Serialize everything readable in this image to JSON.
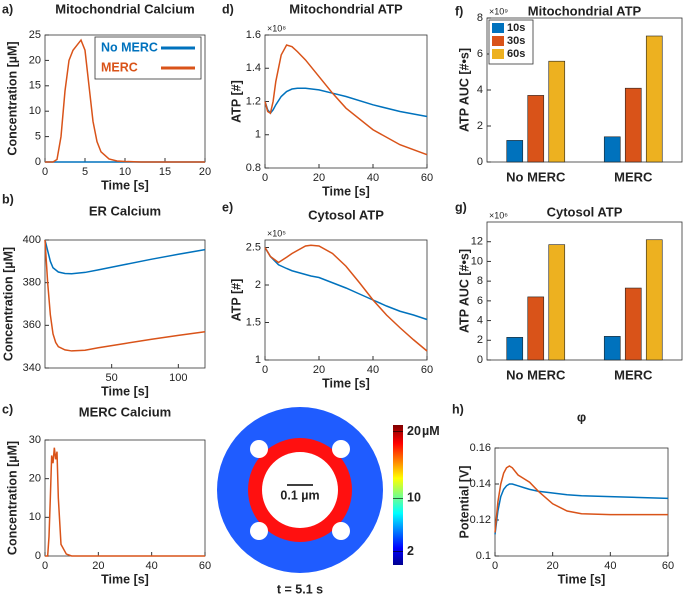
{
  "chart_data": [
    {
      "type": "line",
      "panel": "a)",
      "title": "Mitochondrial Calcium",
      "xlabel": "Time [s]",
      "ylabel": "Concentration [µM]",
      "x": [
        0,
        1,
        1.5,
        2,
        2.5,
        3,
        3.5,
        4,
        4.5,
        5,
        5.5,
        6,
        6.5,
        7,
        8,
        9,
        10,
        12,
        15,
        20
      ],
      "series": [
        {
          "name": "No MERC",
          "color": "#0072bd",
          "values": [
            0,
            0,
            0,
            0,
            0,
            0,
            0,
            0,
            0,
            0,
            0,
            0,
            0,
            0,
            0,
            0,
            0,
            0,
            0,
            0
          ]
        },
        {
          "name": "MERC",
          "color": "#d95319",
          "values": [
            0,
            0,
            0.5,
            5,
            14,
            20,
            22,
            23,
            24,
            22,
            15,
            8,
            4,
            2,
            0.6,
            0.2,
            0.1,
            0,
            0,
            0
          ]
        }
      ],
      "xlim": [
        0,
        20
      ],
      "xticks": [
        0,
        5,
        10,
        15,
        20
      ],
      "ylim": [
        0,
        25
      ],
      "yticks": [
        0,
        5,
        10,
        15,
        20,
        25
      ],
      "legend": "upper right"
    },
    {
      "type": "line",
      "panel": "b)",
      "title": "ER Calcium",
      "xlabel": "Time [s]",
      "ylabel": "Concentration [µM]",
      "x": [
        0,
        2,
        4,
        6,
        8,
        10,
        15,
        20,
        30,
        40,
        60,
        80,
        100,
        120
      ],
      "series": [
        {
          "color": "#0072bd",
          "values": [
            400,
            395,
            390,
            387,
            386,
            385,
            384.3,
            384.2,
            384.8,
            386,
            388.5,
            391,
            393.3,
            395.5
          ]
        },
        {
          "color": "#d95319",
          "values": [
            400,
            380,
            365,
            356,
            352,
            350,
            348.5,
            348,
            348.3,
            349.5,
            351.5,
            353.5,
            355.3,
            357
          ]
        }
      ],
      "xlim": [
        0,
        120
      ],
      "xticks": [
        50,
        100
      ],
      "ylim": [
        340,
        400
      ],
      "yticks": [
        340,
        360,
        380,
        400
      ]
    },
    {
      "type": "line",
      "panel": "c)",
      "title": "MERC Calcium",
      "xlabel": "Time [s]",
      "ylabel": "Concentration [µM]",
      "x": [
        0,
        1,
        1.5,
        2,
        2.5,
        3,
        3.5,
        4,
        4.5,
        5,
        6,
        8,
        10,
        20,
        40,
        60
      ],
      "series": [
        {
          "color": "#d95319",
          "values": [
            0,
            0,
            5,
            15,
            26,
            24,
            28,
            25,
            27,
            15,
            3,
            0.5,
            0,
            0,
            0,
            0
          ]
        }
      ],
      "xlim": [
        0,
        60
      ],
      "xticks": [
        0,
        20,
        40,
        60
      ],
      "ylim": [
        0,
        30
      ],
      "yticks": [
        0,
        10,
        20,
        30
      ]
    },
    {
      "type": "line",
      "panel": "d)",
      "title": "Mitochondrial ATP",
      "xlabel": "Time [s]",
      "ylabel": "ATP [#]",
      "exponent": "×10⁸",
      "x": [
        0,
        1,
        2,
        3,
        4,
        6,
        8,
        10,
        12,
        15,
        20,
        25,
        30,
        40,
        50,
        60
      ],
      "series": [
        {
          "color": "#0072bd",
          "values": [
            1.2,
            1.15,
            1.13,
            1.15,
            1.18,
            1.23,
            1.26,
            1.275,
            1.28,
            1.28,
            1.27,
            1.25,
            1.23,
            1.18,
            1.14,
            1.11
          ]
        },
        {
          "color": "#d95319",
          "values": [
            1.2,
            1.14,
            1.13,
            1.2,
            1.32,
            1.48,
            1.54,
            1.53,
            1.5,
            1.45,
            1.35,
            1.25,
            1.16,
            1.03,
            0.94,
            0.88
          ]
        }
      ],
      "xlim": [
        0,
        60
      ],
      "xticks": [
        0,
        20,
        40,
        60
      ],
      "ylim": [
        0.8,
        1.6
      ],
      "yticks": [
        0.8,
        1,
        1.2,
        1.4,
        1.6
      ]
    },
    {
      "type": "line",
      "panel": "e)",
      "title": "Cytosol ATP",
      "xlabel": "Time [s]",
      "ylabel": "ATP [#]",
      "exponent": "×10⁵",
      "x": [
        0,
        2,
        5,
        8,
        10,
        15,
        17,
        20,
        25,
        30,
        35,
        40,
        45,
        50,
        55,
        60
      ],
      "series": [
        {
          "color": "#0072bd",
          "values": [
            2.5,
            2.38,
            2.27,
            2.22,
            2.19,
            2.14,
            2.12,
            2.1,
            2.03,
            1.96,
            1.88,
            1.8,
            1.72,
            1.65,
            1.6,
            1.54
          ]
        },
        {
          "color": "#d95319",
          "values": [
            2.5,
            2.38,
            2.3,
            2.37,
            2.42,
            2.52,
            2.53,
            2.52,
            2.42,
            2.25,
            2.03,
            1.8,
            1.6,
            1.43,
            1.27,
            1.12
          ]
        }
      ],
      "xlim": [
        0,
        60
      ],
      "xticks": [
        0,
        20,
        40,
        60
      ],
      "ylim": [
        1,
        2.6
      ],
      "yticks": [
        1,
        1.5,
        2,
        2.5
      ]
    },
    {
      "type": "bar",
      "panel": "f)",
      "title": "Mitochondrial ATP",
      "ylabel": "ATP AUC [#•s]",
      "exponent": "×10⁹",
      "categories": [
        "No MERC",
        "MERC"
      ],
      "series": [
        {
          "name": "10s",
          "color": "#0072bd",
          "values": [
            1.2,
            1.4
          ]
        },
        {
          "name": "30s",
          "color": "#d95319",
          "values": [
            3.7,
            4.1
          ]
        },
        {
          "name": "60s",
          "color": "#edb120",
          "values": [
            5.6,
            7.0
          ]
        }
      ],
      "ylim": [
        0,
        8
      ],
      "yticks": [
        0,
        2,
        4,
        6,
        8
      ],
      "legend": "upper left"
    },
    {
      "type": "bar",
      "panel": "g)",
      "title": "Cytosol ATP",
      "ylabel": "ATP AUC [#•s]",
      "exponent": "×10⁶",
      "categories": [
        "No MERC",
        "MERC"
      ],
      "series": [
        {
          "color": "#0072bd",
          "values": [
            2.3,
            2.4
          ]
        },
        {
          "color": "#d95319",
          "values": [
            6.4,
            7.3
          ]
        },
        {
          "color": "#edb120",
          "values": [
            11.7,
            12.2
          ]
        }
      ],
      "ylim": [
        0,
        14
      ],
      "yticks": [
        0,
        2,
        4,
        6,
        8,
        10,
        12
      ]
    },
    {
      "type": "line",
      "panel": "h)",
      "title": "φ",
      "xlabel": "Time [s]",
      "ylabel": "Potential [V]",
      "x": [
        0,
        1,
        2,
        3,
        4,
        5,
        6,
        8,
        10,
        12,
        15,
        20,
        25,
        30,
        40,
        50,
        60
      ],
      "series": [
        {
          "color": "#0072bd",
          "values": [
            0.112,
            0.125,
            0.133,
            0.137,
            0.139,
            0.14,
            0.14,
            0.139,
            0.138,
            0.137,
            0.136,
            0.135,
            0.134,
            0.1335,
            0.133,
            0.1325,
            0.132
          ]
        },
        {
          "color": "#d95319",
          "values": [
            0.113,
            0.13,
            0.14,
            0.146,
            0.149,
            0.15,
            0.149,
            0.145,
            0.143,
            0.141,
            0.136,
            0.129,
            0.125,
            0.1235,
            0.123,
            0.123,
            0.123
          ]
        }
      ],
      "xlim": [
        0,
        60
      ],
      "xticks": [
        0,
        20,
        40,
        60
      ],
      "ylim": [
        0.1,
        0.16
      ],
      "yticks": [
        0.1,
        0.12,
        0.14,
        0.16
      ]
    }
  ],
  "ring_panel": {
    "colorbar_ticks": [
      20,
      10,
      2
    ],
    "colorbar_unit": "µM",
    "clim": [
      0,
      21
    ],
    "scale_bar": "0.1 µm",
    "caption": "t = 5.1 s"
  }
}
